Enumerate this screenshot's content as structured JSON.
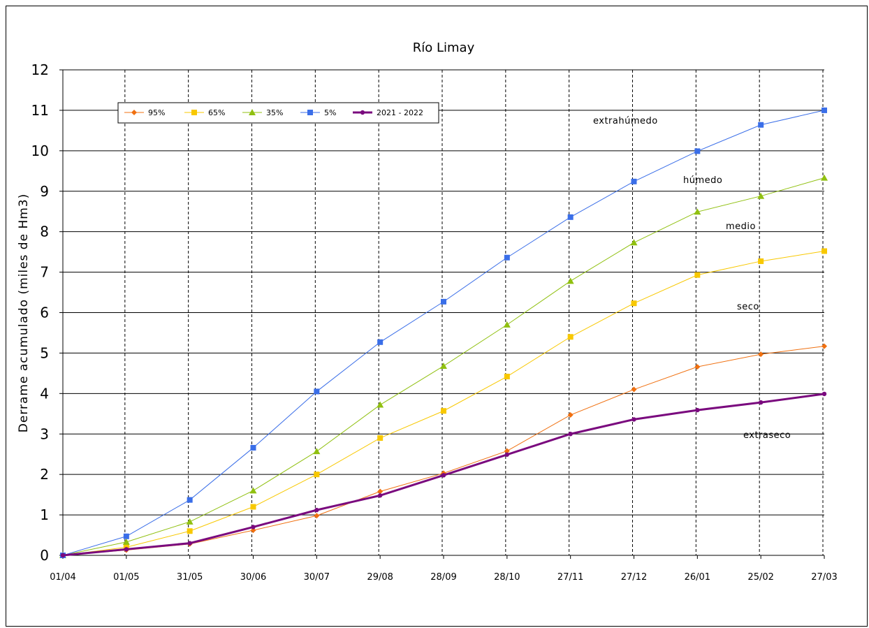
{
  "chart_data": {
    "type": "line",
    "title": "Río Limay",
    "xlabel": "",
    "ylabel": "Derrame acumulado (miles de Hm3)",
    "ylim": [
      0,
      12
    ],
    "yticks": [
      "0",
      "1",
      "2",
      "3",
      "4",
      "5",
      "6",
      "7",
      "8",
      "9",
      "10",
      "11",
      "12"
    ],
    "categories": [
      "01/04",
      "01/05",
      "31/05",
      "30/06",
      "30/07",
      "29/08",
      "28/09",
      "28/10",
      "27/11",
      "27/12",
      "26/01",
      "25/02",
      "27/03"
    ],
    "grid": true,
    "legend_position": "top-left",
    "series": [
      {
        "name": "95%",
        "color": "#f07010",
        "marker": "diamond",
        "values": [
          0,
          0.13,
          0.28,
          0.62,
          0.98,
          1.58,
          2.03,
          2.58,
          3.47,
          4.1,
          4.66,
          4.97,
          5.17
        ]
      },
      {
        "name": "65%",
        "color": "#f8c800",
        "marker": "square",
        "values": [
          0,
          0.2,
          0.6,
          1.2,
          2.0,
          2.9,
          3.57,
          4.42,
          5.4,
          6.23,
          6.93,
          7.27,
          7.52
        ]
      },
      {
        "name": "35%",
        "color": "#90c010",
        "marker": "triangle",
        "values": [
          0,
          0.33,
          0.83,
          1.6,
          2.57,
          3.72,
          4.68,
          5.7,
          6.78,
          7.73,
          8.49,
          8.88,
          9.33
        ]
      },
      {
        "name": "5%",
        "color": "#3a6ee8",
        "marker": "square",
        "values": [
          0,
          0.47,
          1.37,
          2.66,
          4.05,
          5.27,
          6.27,
          7.36,
          8.36,
          9.24,
          9.99,
          10.64,
          11.0
        ]
      },
      {
        "name": "2021 - 2022",
        "color": "#7a0a7e",
        "marker": "circle",
        "values": [
          0,
          0.15,
          0.3,
          0.7,
          1.12,
          1.48,
          1.98,
          2.49,
          3.0,
          3.36,
          3.59,
          3.78,
          3.99
        ]
      }
    ],
    "annotations": [
      "extrahúmedo",
      "húmedo",
      "medio",
      "seco",
      "extraseco"
    ]
  }
}
